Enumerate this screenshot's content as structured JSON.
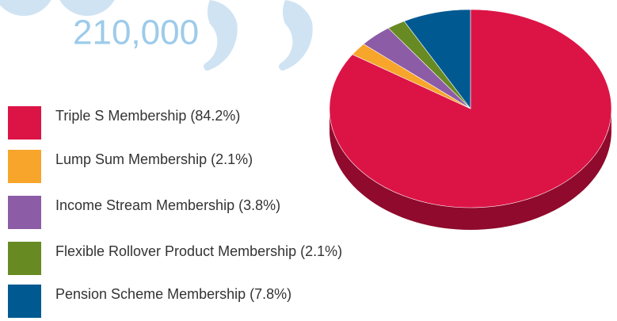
{
  "headline": "210,000",
  "chart_data": {
    "type": "pie",
    "categories": [
      "Triple S Membership",
      "Lump Sum Membership",
      "Income Stream Membership",
      "Flexible Rollover Product Membership",
      "Pension Scheme Membership"
    ],
    "values": [
      84.2,
      2.1,
      3.8,
      2.1,
      7.8
    ],
    "value_labels": [
      "(84.2%)",
      "(2.1%)",
      "(3.8%)",
      "(2.1%)",
      "(7.8%)"
    ],
    "colors": [
      "#dc1446",
      "#f7a52b",
      "#8d5ca6",
      "#678a22",
      "#005a91"
    ],
    "legend": "left"
  }
}
